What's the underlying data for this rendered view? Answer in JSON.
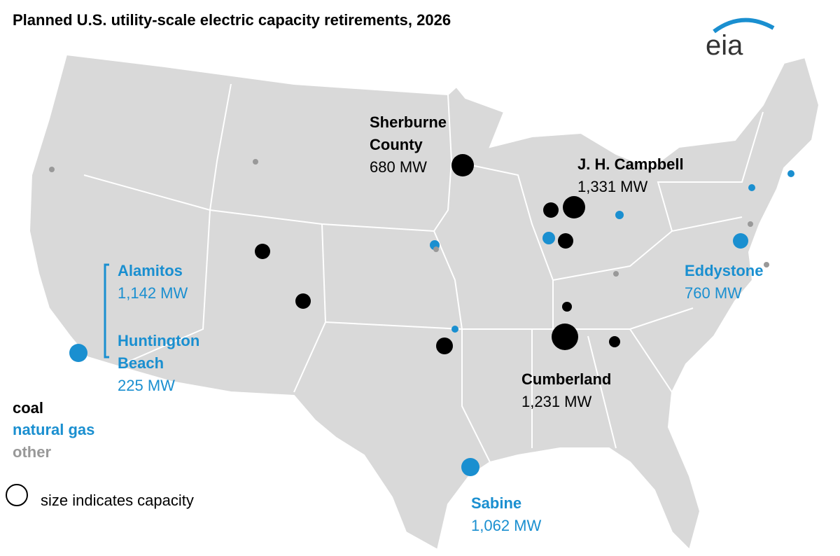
{
  "title": "Planned U.S. utility-scale electric capacity retirements, 2026",
  "logo": "eia",
  "plants": [
    {
      "name_lines": [
        "Sherburne",
        "County"
      ],
      "capacity": "680 MW"
    },
    {
      "name_lines": [
        "J. H. Campbell"
      ],
      "capacity": "1,331 MW"
    },
    {
      "name_lines": [
        "Alamitos"
      ],
      "capacity": "1,142 MW"
    },
    {
      "name_lines": [
        "Huntington",
        "Beach"
      ],
      "capacity": "225 MW"
    },
    {
      "name_lines": [
        "Eddystone"
      ],
      "capacity": "760 MW"
    },
    {
      "name_lines": [
        "Cumberland"
      ],
      "capacity": "1,231 MW"
    },
    {
      "name_lines": [
        "Sabine"
      ],
      "capacity": "1,062 MW"
    }
  ],
  "legend": {
    "items": [
      "coal",
      "natural gas",
      "other"
    ],
    "size_note": "size indicates capacity"
  }
}
